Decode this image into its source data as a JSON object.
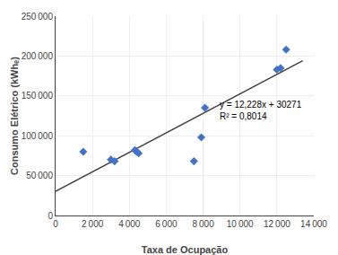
{
  "chart_data": {
    "type": "scatter",
    "xlabel": "Taxa de Ocupação",
    "ylabel": "Consumo Elétrico (kWhₑ)",
    "series": [
      {
        "type": "scatter",
        "color": "#4472C4",
        "marker": "diamond",
        "x": [
          1500,
          3000,
          3200,
          4300,
          4400,
          4500,
          7500,
          7900,
          8100,
          12000,
          12200,
          12500
        ],
        "values": [
          80000,
          70000,
          68000,
          82000,
          80000,
          78000,
          68000,
          98000,
          135000,
          183000,
          185000,
          208000
        ]
      },
      {
        "type": "line",
        "color": "#404040",
        "line_style": "solid",
        "x": [
          0,
          13400
        ],
        "values": [
          30271,
          194126.2
        ]
      }
    ],
    "annotations": [
      {
        "text": "y = 12,228x + 30271\nR² = 0,8014",
        "x": 8800,
        "y": 148000
      }
    ],
    "xlim": [
      0,
      14000
    ],
    "ylim": [
      0,
      250000
    ],
    "xticks": [
      0,
      {
        "value": 2000,
        "label": "2 000"
      },
      {
        "value": 4000,
        "label": "4 000"
      },
      {
        "value": 6000,
        "label": "6 000"
      },
      {
        "value": 8000,
        "label": "8 000"
      },
      {
        "value": 10000,
        "label": "10 000"
      },
      {
        "value": 12000,
        "label": "12 000"
      },
      {
        "value": 14000,
        "label": "14 000"
      }
    ],
    "yticks": [
      0,
      {
        "value": 50000,
        "label": "50 000"
      },
      {
        "value": 100000,
        "label": "100 000"
      },
      {
        "value": 150000,
        "label": "150 000"
      },
      {
        "value": 200000,
        "label": "200 000"
      },
      {
        "value": 250000,
        "label": "250 000"
      }
    ],
    "grid": true
  }
}
